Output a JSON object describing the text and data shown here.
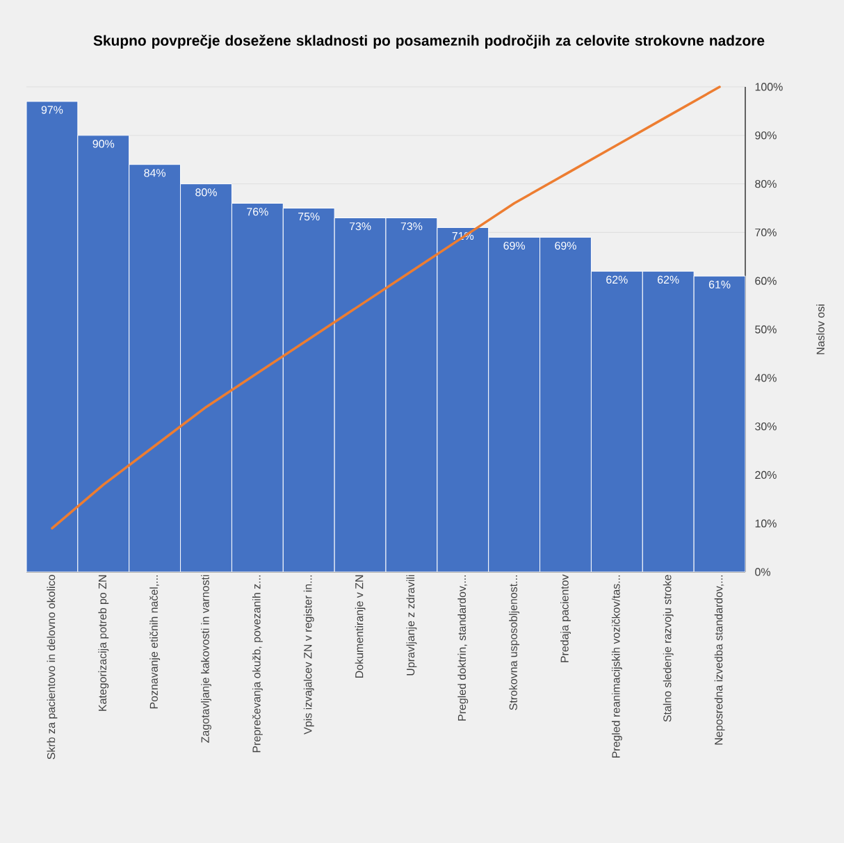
{
  "chart_data": {
    "type": "bar",
    "title": "Skupno povprečje dosežene skladnosti po posameznih področjih za celovite strokovne nadzore",
    "ylabel": "Naslov osi",
    "categories": [
      "Skrb za pacientovo in delovno okolico",
      "Kategorizacija potreb po ZN",
      "Poznavanje etičnih načel,...",
      "Zagotavljanje kakovosti in varnosti",
      "Preprečevanja okužb, povezanih z...",
      "Vpis izvajalcev ZN v register in...",
      "Dokumentiranje v ZN",
      "Upravljanje z zdravili",
      "Pregled doktrin, standardov,...",
      "Strokovna usposobljenost...",
      "Predaja pacientov",
      "Pregled reanimacijskih vozičkov/tas...",
      "Stalno sledenje razvoju stroke",
      "Neposredna izvedba standardov,..."
    ],
    "series": [
      {
        "color": "#4472c4",
        "values": [
          97,
          90,
          84,
          80,
          76,
          75,
          73,
          73,
          71,
          69,
          69,
          62,
          62,
          61
        ],
        "value_labels": [
          "97%",
          "90%",
          "84%",
          "80%",
          "76%",
          "75%",
          "73%",
          "73%",
          "71%",
          "69%",
          "69%",
          "62%",
          "62%",
          "61%"
        ]
      },
      {
        "type": "line",
        "color": "#ed7d31",
        "values": [
          9,
          18,
          26,
          34,
          41,
          48,
          55,
          62,
          69,
          76,
          82,
          88,
          94,
          100
        ]
      }
    ],
    "ylim": [
      0,
      100
    ],
    "yticks": [
      {
        "value": 0,
        "label": "0%"
      },
      {
        "value": 10,
        "label": "10%"
      },
      {
        "value": 20,
        "label": "20%"
      },
      {
        "value": 30,
        "label": "30%"
      },
      {
        "value": 40,
        "label": "40%"
      },
      {
        "value": 50,
        "label": "50%"
      },
      {
        "value": 60,
        "label": "60%"
      },
      {
        "value": 70,
        "label": "70%"
      },
      {
        "value": 80,
        "label": "80%"
      },
      {
        "value": 90,
        "label": "90%"
      },
      {
        "value": 100,
        "label": "100%"
      }
    ],
    "grid": "y"
  }
}
